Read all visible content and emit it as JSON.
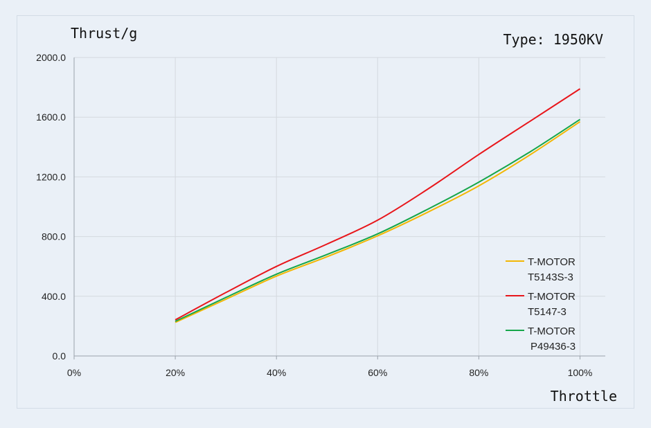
{
  "chart_data": {
    "type": "line",
    "annotation": "Type: 1950KV",
    "ylabel": "Thrust/g",
    "xlabel": "Throttle",
    "x": [
      20,
      30,
      40,
      50,
      60,
      70,
      80,
      90,
      100
    ],
    "x_tick_labels": [
      "0%",
      "20%",
      "40%",
      "60%",
      "80%",
      "100%"
    ],
    "x_ticks": [
      0,
      20,
      40,
      60,
      80,
      100
    ],
    "xlim": [
      0,
      105
    ],
    "y_tick_labels": [
      "0.0",
      "400.0",
      "800.0",
      "1200.0",
      "1600.0",
      "2000.0"
    ],
    "y_ticks": [
      0,
      400,
      800,
      1200,
      1600,
      2000
    ],
    "ylim": [
      0,
      2000
    ],
    "grid": true,
    "legend_position": "right",
    "series": [
      {
        "name_lines": [
          "T-MOTOR",
          "T5143S-3"
        ],
        "color": "#f2b705",
        "values": [
          225,
          380,
          535,
          665,
          805,
          965,
          1140,
          1345,
          1570
        ]
      },
      {
        "name_lines": [
          "T-MOTOR",
          "T5147-3"
        ],
        "color": "#e8161b",
        "values": [
          242,
          425,
          600,
          750,
          910,
          1120,
          1350,
          1570,
          1790
        ]
      },
      {
        "name_lines": [
          "T-MOTOR",
          "P49436-3"
        ],
        "color": "#16a64a",
        "values": [
          232,
          392,
          548,
          680,
          818,
          985,
          1165,
          1365,
          1585
        ]
      }
    ]
  }
}
